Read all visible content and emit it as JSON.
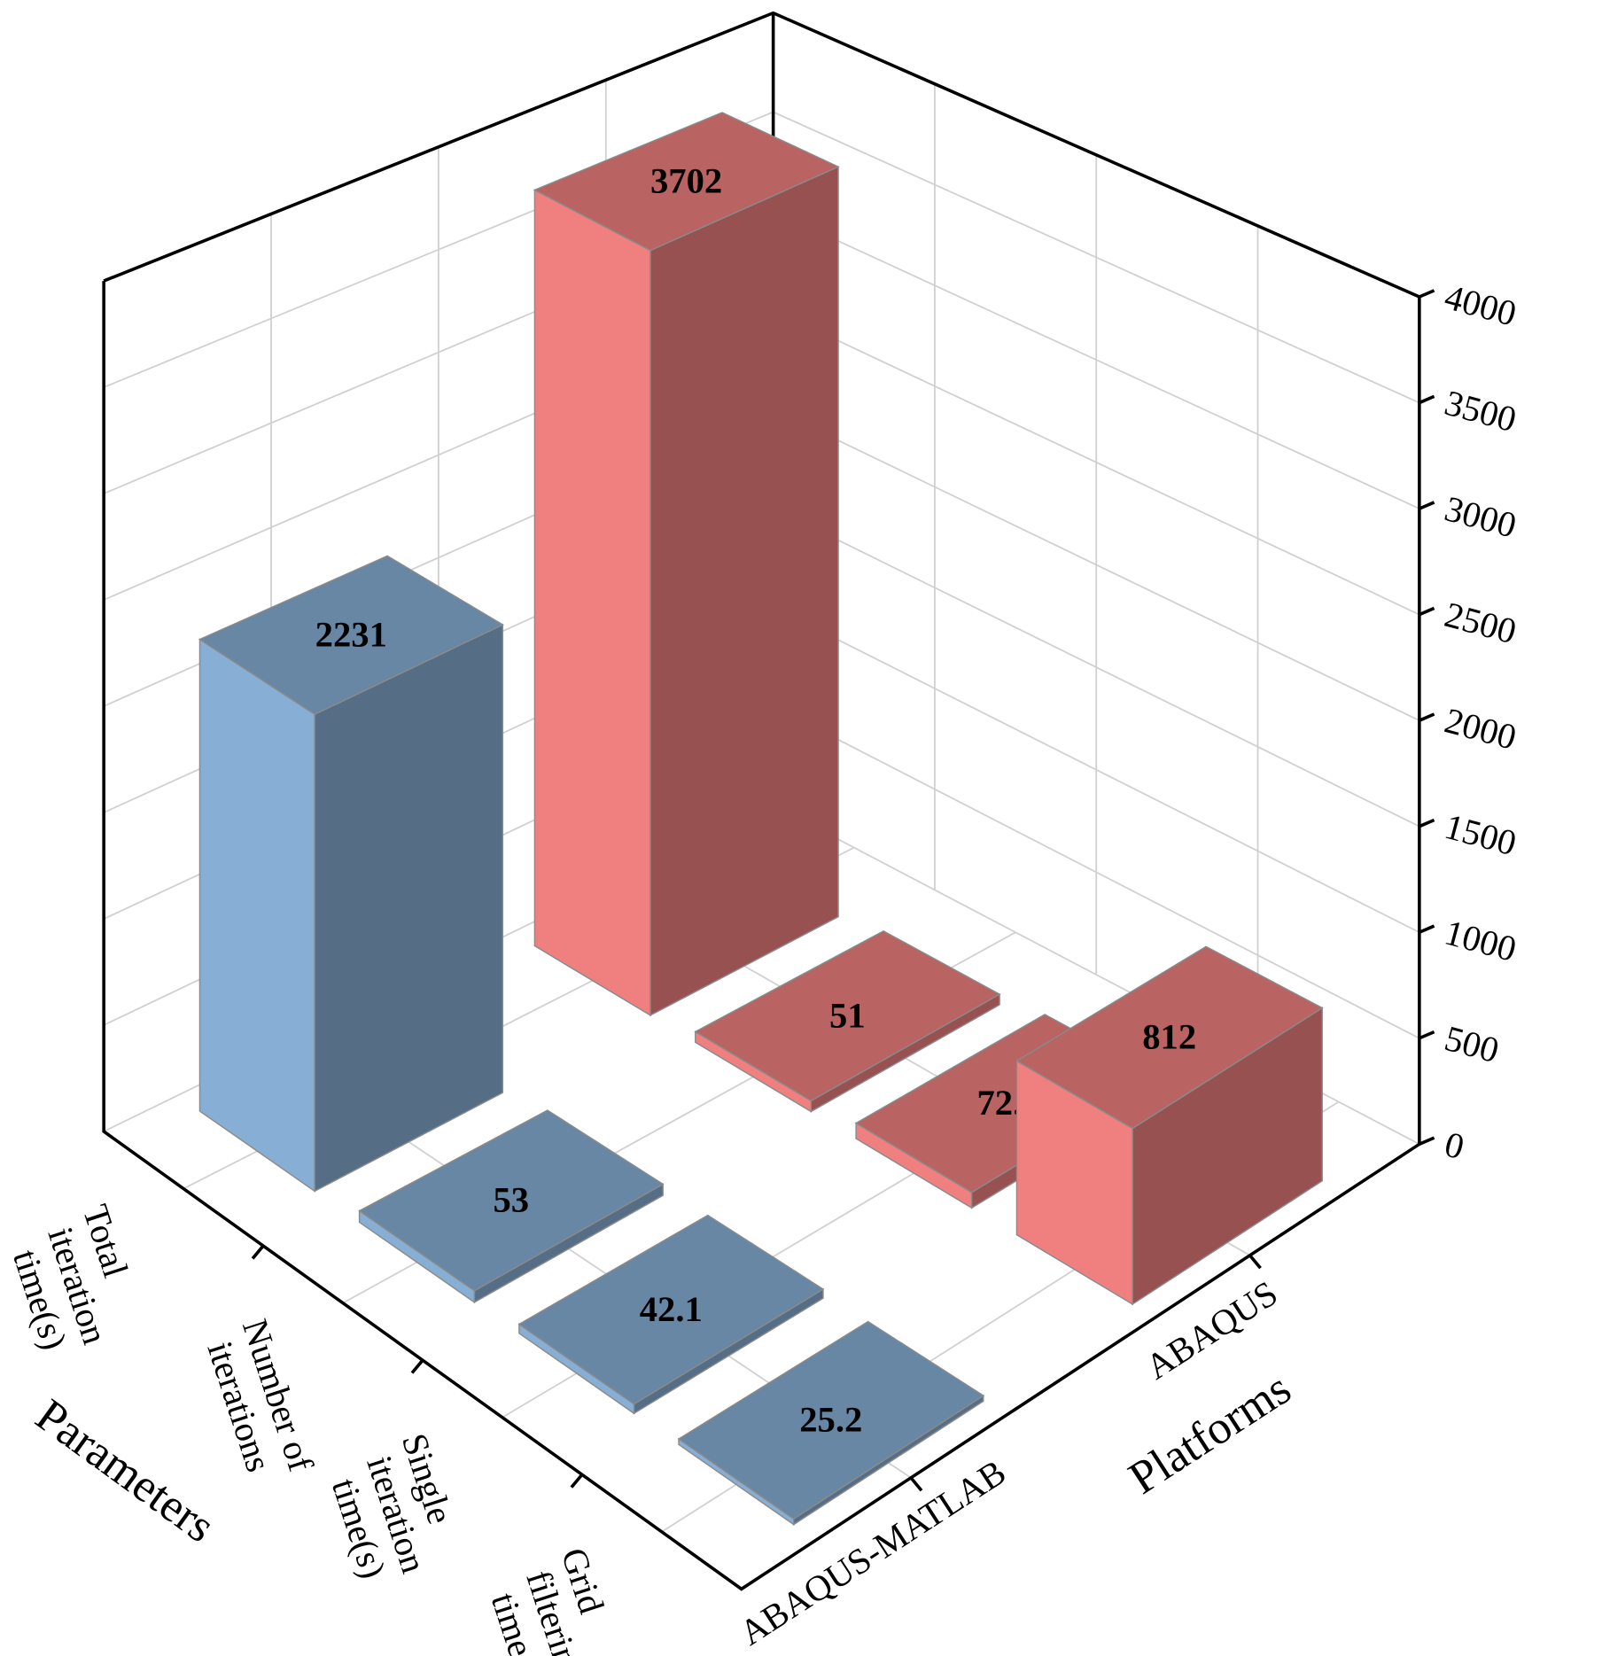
{
  "chart_data": {
    "type": "bar3d",
    "categories": [
      "Total iteration time(s)",
      "Number of iterations",
      "Single iteration time(s)",
      "Grid filtering time(s)"
    ],
    "series": [
      {
        "name": "ABAQUS-MATLAB",
        "color": "#87afd5",
        "values": [
          2231,
          53,
          42.1,
          25.2
        ]
      },
      {
        "name": "ABAQUS",
        "color": "#f08080",
        "values": [
          3702,
          51,
          72.6,
          812
        ]
      }
    ],
    "zlim": [
      0,
      4000
    ],
    "zticks": [
      0,
      500,
      1000,
      1500,
      2000,
      2500,
      3000,
      3500,
      4000
    ],
    "xlabel": "Parameters",
    "ylabel": "Platforms",
    "grid": true
  }
}
